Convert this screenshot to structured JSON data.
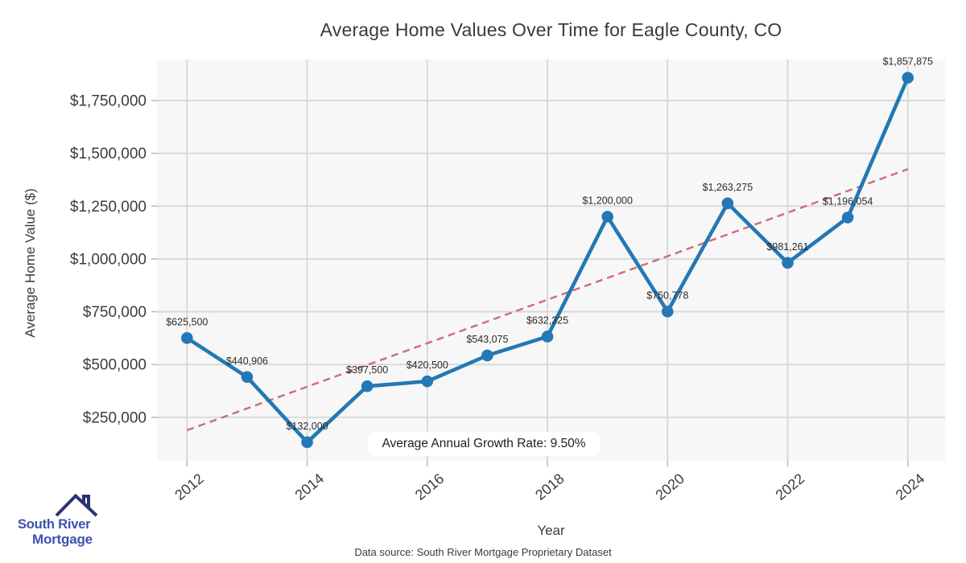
{
  "chart_data": {
    "type": "line",
    "title": "Average Home Values Over Time for Eagle County, CO",
    "xlabel": "Year",
    "ylabel": "Average Home Value ($)",
    "x": [
      2012,
      2013,
      2014,
      2015,
      2016,
      2017,
      2018,
      2019,
      2020,
      2021,
      2022,
      2023,
      2024
    ],
    "values": [
      625500,
      440906,
      132000,
      397500,
      420500,
      543075,
      632325,
      1200000,
      750778,
      1263275,
      981261,
      1196054,
      1857875
    ],
    "data_labels": [
      "$625,500",
      "$440,906",
      "$132,000",
      "$397,500",
      "$420,500",
      "$543,075",
      "$632,325",
      "$1,200,000",
      "$750,778",
      "$1,263,275",
      "$981,261",
      "$1,196,054",
      "$1,857,875"
    ],
    "x_ticks": [
      2012,
      2014,
      2016,
      2018,
      2020,
      2022,
      2024
    ],
    "y_ticks": [
      250000,
      500000,
      750000,
      1000000,
      1250000,
      1500000,
      1750000
    ],
    "y_tick_labels": [
      "$250,000",
      "$500,000",
      "$750,000",
      "$1,000,000",
      "$1,250,000",
      "$1,500,000",
      "$1,750,000"
    ],
    "xlim": [
      2011.5,
      2024.62
    ],
    "ylim": [
      44000,
      1944000
    ],
    "grid": true,
    "legend": "none",
    "trend": {
      "style": "dashed",
      "x": [
        2012,
        2024
      ],
      "values": [
        189000,
        1425000
      ]
    },
    "annotation": "Average Annual Growth Rate: 9.50%"
  },
  "footer": {
    "data_source": "Data source: South River Mortgage Proprietary Dataset"
  },
  "logo": {
    "line1": "South River",
    "line2": "Mortgage"
  },
  "colors": {
    "line": "#2378b5",
    "trend": "#cf6b73",
    "plot_bg": "#f7f7f7",
    "grid": "#d7d7d7",
    "tick": "#b3b3b3",
    "text": "#3c3c3c",
    "logo_text": "#3d52ad",
    "logo_roof": "#2b3374"
  }
}
